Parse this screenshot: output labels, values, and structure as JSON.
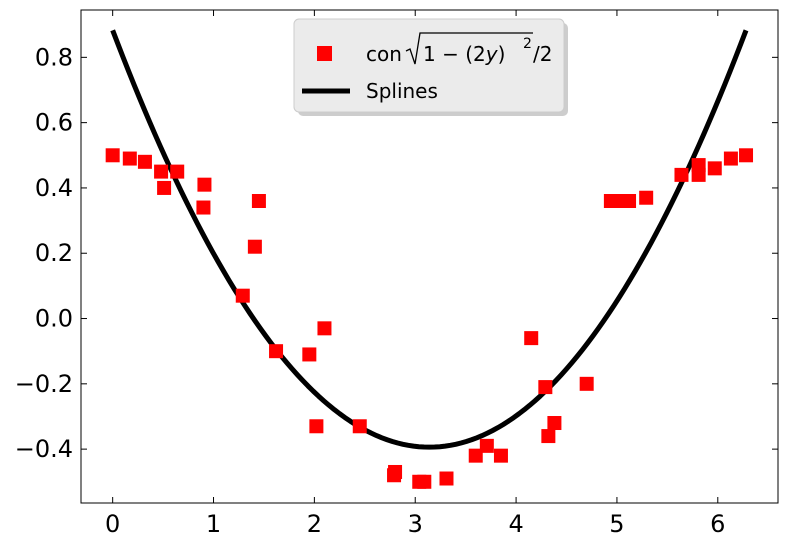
{
  "chart_data": {
    "type": "scatter",
    "title": "",
    "xlabel": "",
    "ylabel": "",
    "xlim": [
      -0.314,
      6.597
    ],
    "ylim": [
      -0.565,
      0.945
    ],
    "xticks": [
      0,
      1,
      2,
      3,
      4,
      5,
      6
    ],
    "xtick_labels": [
      "0",
      "1",
      "2",
      "3",
      "4",
      "5",
      "6"
    ],
    "yticks": [
      -0.4,
      -0.2,
      0.0,
      0.2,
      0.4,
      0.6,
      0.8
    ],
    "ytick_labels": [
      "−0.4",
      "−0.2",
      "0.0",
      "0.2",
      "0.4",
      "0.6",
      "0.8"
    ],
    "grid": false,
    "legend_position": "top-center",
    "series": [
      {
        "name": "con √(1 − (2y)²)/2",
        "kind": "scatter",
        "marker": "square",
        "color": "#ff0000",
        "points": [
          [
            0.0,
            0.5
          ],
          [
            0.17,
            0.49
          ],
          [
            0.32,
            0.48
          ],
          [
            0.48,
            0.45
          ],
          [
            0.51,
            0.4
          ],
          [
            0.64,
            0.45
          ],
          [
            0.9,
            0.34
          ],
          [
            0.91,
            0.41
          ],
          [
            1.41,
            0.22
          ],
          [
            1.45,
            0.36
          ],
          [
            1.29,
            0.07
          ],
          [
            1.62,
            -0.1
          ],
          [
            1.95,
            -0.11
          ],
          [
            2.02,
            -0.33
          ],
          [
            2.1,
            -0.03
          ],
          [
            2.45,
            -0.33
          ],
          [
            2.79,
            -0.48
          ],
          [
            2.8,
            -0.47
          ],
          [
            3.04,
            -0.5
          ],
          [
            3.09,
            -0.5
          ],
          [
            3.31,
            -0.49
          ],
          [
            3.6,
            -0.42
          ],
          [
            3.71,
            -0.39
          ],
          [
            3.85,
            -0.42
          ],
          [
            4.15,
            -0.06
          ],
          [
            4.29,
            -0.21
          ],
          [
            4.32,
            -0.36
          ],
          [
            4.38,
            -0.32
          ],
          [
            4.7,
            -0.2
          ],
          [
            4.94,
            0.36
          ],
          [
            5.04,
            0.36
          ],
          [
            5.12,
            0.36
          ],
          [
            5.29,
            0.37
          ],
          [
            5.64,
            0.44
          ],
          [
            5.81,
            0.44
          ],
          [
            5.81,
            0.47
          ],
          [
            5.97,
            0.46
          ],
          [
            6.13,
            0.49
          ],
          [
            6.28,
            0.5
          ]
        ]
      },
      {
        "name": "Splines",
        "kind": "line",
        "color": "#000000",
        "model": {
          "form": "a + b*(x - c)^2",
          "a": -0.394,
          "b": 0.1295,
          "c": 3.14,
          "x_range": [
            0.0,
            6.28
          ]
        }
      }
    ],
    "legend": {
      "marker_label_text": "con ",
      "formula_radicand": "1 − (2",
      "formula_var": "y",
      "formula_close": ")",
      "formula_exponent": "2",
      "formula_tail": "/2",
      "line_label": "Splines"
    }
  }
}
